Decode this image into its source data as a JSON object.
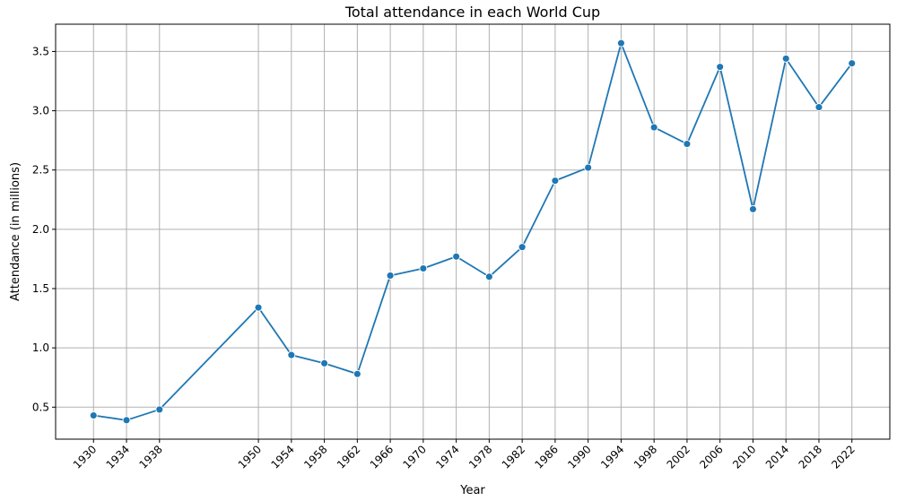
{
  "chart_data": {
    "type": "line",
    "title": "Total attendance in each World Cup",
    "xlabel": "Year",
    "ylabel": "Attendance (in millions)",
    "x": [
      1930,
      1934,
      1938,
      1950,
      1954,
      1958,
      1962,
      1966,
      1970,
      1974,
      1978,
      1982,
      1986,
      1990,
      1994,
      1998,
      2002,
      2006,
      2010,
      2014,
      2018,
      2022
    ],
    "x_tick_labels": [
      "1930",
      "1934",
      "1938",
      "1950",
      "1954",
      "1958",
      "1962",
      "1966",
      "1970",
      "1974",
      "1978",
      "1982",
      "1986",
      "1990",
      "1994",
      "1998",
      "2002",
      "2006",
      "2010",
      "2014",
      "2018",
      "2022"
    ],
    "series": [
      {
        "values": [
          0.43,
          0.39,
          0.48,
          1.34,
          0.94,
          0.87,
          0.78,
          1.61,
          1.67,
          1.77,
          1.6,
          1.85,
          2.41,
          2.52,
          3.57,
          2.86,
          2.72,
          3.37,
          2.17,
          3.44,
          3.03,
          3.4
        ],
        "color": "#1f77b4"
      }
    ],
    "y_ticks": [
      0.5,
      1.0,
      1.5,
      2.0,
      2.5,
      3.0,
      3.5
    ],
    "y_tick_labels": [
      "0.5",
      "1.0",
      "1.5",
      "2.0",
      "2.5",
      "3.0",
      "3.5"
    ],
    "xlim": [
      1925.4,
      2026.6
    ],
    "ylim": [
      0.23,
      3.73
    ],
    "grid": true,
    "marker": "circle",
    "x_tick_rotation": 45
  }
}
